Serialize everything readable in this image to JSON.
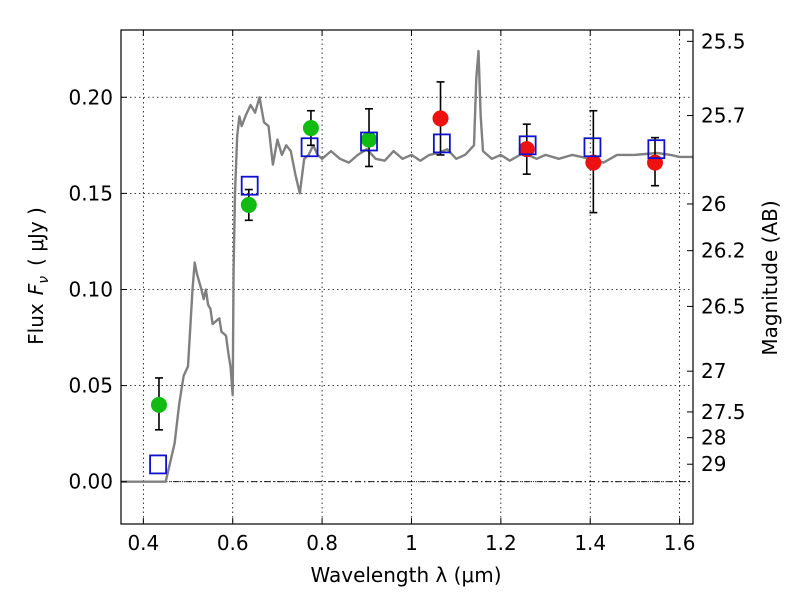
{
  "chart_data": {
    "type": "scatter",
    "xlabel": "Wavelength  λ (μm)",
    "ylabel": "Flux  F_ν  ( μJy )",
    "ylabel_parts": {
      "prefix": "Flux",
      "symbol": "F",
      "sub": "ν",
      "unit": "( μJy )"
    },
    "y2label": "Magnitude (AB)",
    "xlim": [
      0.35,
      1.63
    ],
    "ylim": [
      -0.022,
      0.235
    ],
    "xticks": [
      0.4,
      0.6,
      0.8,
      1.0,
      1.2,
      1.4,
      1.6
    ],
    "xtick_labels": [
      "0.4",
      "0.6",
      "0.8",
      "1",
      "1.2",
      "1.4",
      "1.6"
    ],
    "yticks": [
      0.0,
      0.05,
      0.1,
      0.15,
      0.2
    ],
    "ytick_labels": [
      "0.00",
      "0.05",
      "0.10",
      "0.15",
      "0.20"
    ],
    "y2_ticks": [
      {
        "label": "25.5",
        "flux": 0.2291
      },
      {
        "label": "25.7",
        "flux": 0.1905
      },
      {
        "label": "26",
        "flux": 0.1445
      },
      {
        "label": "26.2",
        "flux": 0.1202
      },
      {
        "label": "26.5",
        "flux": 0.0912
      },
      {
        "label": "27",
        "flux": 0.0575
      },
      {
        "label": "27.5",
        "flux": 0.0363
      },
      {
        "label": "28",
        "flux": 0.0229
      },
      {
        "label": "29",
        "flux": 0.0091
      }
    ],
    "grid": true,
    "model_curve": {
      "color": "#808080",
      "x": [
        0.35,
        0.45,
        0.47,
        0.48,
        0.49,
        0.5,
        0.51,
        0.515,
        0.52,
        0.53,
        0.535,
        0.54,
        0.545,
        0.55,
        0.555,
        0.56,
        0.57,
        0.575,
        0.58,
        0.585,
        0.59,
        0.595,
        0.6,
        0.602,
        0.605,
        0.61,
        0.615,
        0.62,
        0.63,
        0.64,
        0.65,
        0.66,
        0.67,
        0.68,
        0.69,
        0.7,
        0.71,
        0.72,
        0.73,
        0.74,
        0.75,
        0.76,
        0.77,
        0.78,
        0.79,
        0.8,
        0.82,
        0.84,
        0.86,
        0.88,
        0.9,
        0.92,
        0.94,
        0.96,
        0.98,
        1.0,
        1.02,
        1.04,
        1.06,
        1.08,
        1.1,
        1.12,
        1.14,
        1.145,
        1.15,
        1.155,
        1.16,
        1.18,
        1.2,
        1.22,
        1.25,
        1.28,
        1.3,
        1.33,
        1.36,
        1.4,
        1.43,
        1.46,
        1.5,
        1.55,
        1.58,
        1.6,
        1.63
      ],
      "y": [
        0,
        0,
        0.02,
        0.04,
        0.055,
        0.06,
        0.1,
        0.114,
        0.108,
        0.1,
        0.095,
        0.1,
        0.092,
        0.09,
        0.082,
        0.083,
        0.085,
        0.078,
        0.077,
        0.076,
        0.067,
        0.06,
        0.045,
        0.11,
        0.15,
        0.18,
        0.19,
        0.185,
        0.191,
        0.196,
        0.192,
        0.2,
        0.187,
        0.185,
        0.165,
        0.178,
        0.17,
        0.175,
        0.172,
        0.16,
        0.15,
        0.168,
        0.17,
        0.175,
        0.17,
        0.168,
        0.172,
        0.168,
        0.166,
        0.17,
        0.173,
        0.168,
        0.167,
        0.172,
        0.168,
        0.17,
        0.167,
        0.17,
        0.171,
        0.173,
        0.168,
        0.17,
        0.175,
        0.21,
        0.224,
        0.19,
        0.172,
        0.168,
        0.17,
        0.167,
        0.171,
        0.168,
        0.17,
        0.168,
        0.17,
        0.168,
        0.166,
        0.17,
        0.17,
        0.171,
        0.17,
        0.169,
        0.169
      ]
    },
    "series": [
      {
        "marker": "circle",
        "color": "#11bb11",
        "points": [
          {
            "x": 0.435,
            "y": 0.04,
            "err": [
              0.027,
              0.054
            ]
          },
          {
            "x": 0.636,
            "y": 0.144,
            "err": [
              0.136,
              0.152
            ]
          },
          {
            "x": 0.775,
            "y": 0.184,
            "err": [
              0.175,
              0.193
            ]
          },
          {
            "x": 0.905,
            "y": 0.178,
            "err": [
              0.164,
              0.194
            ]
          }
        ]
      },
      {
        "marker": "circle",
        "color": "#ee1111",
        "points": [
          {
            "x": 1.065,
            "y": 0.189,
            "err": [
              0.17,
              0.208
            ]
          },
          {
            "x": 1.258,
            "y": 0.173,
            "err": [
              0.16,
              0.186
            ]
          },
          {
            "x": 1.407,
            "y": 0.166,
            "err": [
              0.14,
              0.193
            ]
          },
          {
            "x": 1.545,
            "y": 0.166,
            "err": [
              0.154,
              0.179
            ]
          }
        ]
      },
      {
        "marker": "square",
        "color": "#1111cc",
        "points": [
          {
            "x": 0.433,
            "y": 0.009
          },
          {
            "x": 0.638,
            "y": 0.154
          },
          {
            "x": 0.772,
            "y": 0.174
          },
          {
            "x": 0.905,
            "y": 0.177
          },
          {
            "x": 1.068,
            "y": 0.176
          },
          {
            "x": 1.26,
            "y": 0.175
          },
          {
            "x": 1.405,
            "y": 0.174
          },
          {
            "x": 1.548,
            "y": 0.173
          }
        ]
      }
    ]
  }
}
